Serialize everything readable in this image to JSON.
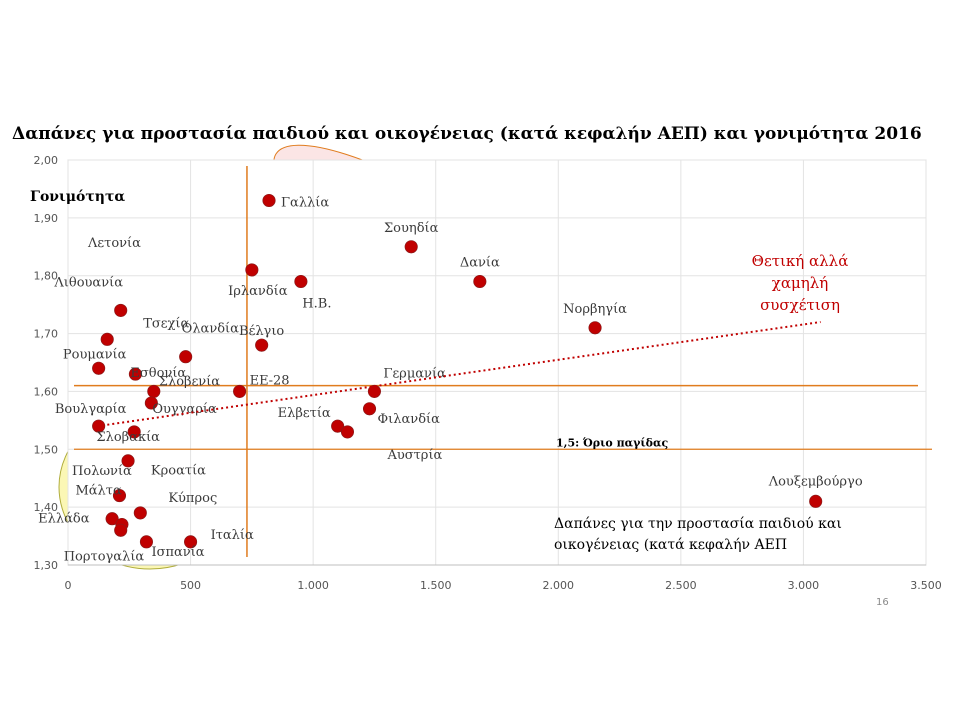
{
  "title": "Δαπάνες για προστασία παιδιού και οικογένειας (κατά κεφαλήν ΑΕΠ) και γονιμότητα 2016",
  "page_number": "16",
  "colors": {
    "point": "#c00000",
    "lines": "#e07c1e",
    "ellipse_pink": "#fbe5e5",
    "ellipse_yellow": "#fbf7b5",
    "trend": "#c00000",
    "annotation": "#c00000"
  },
  "chart_data": {
    "type": "scatter",
    "xlim": [
      0,
      3500
    ],
    "ylim": [
      1.3,
      2.0
    ],
    "x_ticks": [
      0,
      500,
      1000,
      1500,
      2000,
      2500,
      3000,
      3500
    ],
    "x_tick_labels": [
      "0",
      "500",
      "1.000",
      "1.500",
      "2.000",
      "2.500",
      "3.000",
      "3.500"
    ],
    "y_ticks": [
      1.3,
      1.4,
      1.5,
      1.6,
      1.7,
      1.8,
      1.9,
      2.0
    ],
    "y_tick_labels": [
      "1,30",
      "1,40",
      "1,50",
      "1,60",
      "1,70",
      "1,80",
      "1,90",
      "2,00"
    ],
    "ylabel": "Γονιμότητα",
    "xlabel_lines": [
      "Δαπάνες για την προστασία παιδιού και",
      "οικογένειας (κατά κεφαλήν  ΑΕΠ"
    ],
    "grid": true,
    "points": [
      {
        "label": "Γαλλία",
        "x": 820,
        "y": 1.93
      },
      {
        "label": "Σουηδία",
        "x": 1400,
        "y": 1.85
      },
      {
        "label": "Δανία",
        "x": 1680,
        "y": 1.79
      },
      {
        "label": "Νορβηγία",
        "x": 2150,
        "y": 1.71
      },
      {
        "label": "Ιρλανδία",
        "x": 750,
        "y": 1.81
      },
      {
        "label": "Η.Β.",
        "x": 950,
        "y": 1.79
      },
      {
        "label": "Βέλγιο",
        "x": 790,
        "y": 1.68
      },
      {
        "label": "Λιθουανία",
        "x": 215,
        "y": 1.74
      },
      {
        "label": "Τσεχία",
        "x": 160,
        "y": 1.69
      },
      {
        "label": "Ολανδία",
        "x": 480,
        "y": 1.66
      },
      {
        "label": "Ρουμανία",
        "x": 125,
        "y": 1.64
      },
      {
        "label": "Εσθονία",
        "x": 275,
        "y": 1.63
      },
      {
        "label": "Σλοβενία",
        "x": 350,
        "y": 1.6
      },
      {
        "label": "ΕΕ-28",
        "x": 700,
        "y": 1.6
      },
      {
        "label": "Ουγγαρία",
        "x": 340,
        "y": 1.58
      },
      {
        "label": "Βουλγαρία",
        "x": 125,
        "y": 1.54
      },
      {
        "label": "Σλοβακία",
        "x": 270,
        "y": 1.53
      },
      {
        "label": "Γερμανία",
        "x": 1250,
        "y": 1.6
      },
      {
        "label": "Ελβετία",
        "x": 1100,
        "y": 1.54
      },
      {
        "label": "Φιλανδία",
        "x": 1230,
        "y": 1.57
      },
      {
        "label": "Αυστρία",
        "x": 1140,
        "y": 1.53
      },
      {
        "label": "Πολωνία",
        "x": 245,
        "y": 1.48
      },
      {
        "label": "Μάλτα",
        "x": 210,
        "y": 1.42
      },
      {
        "label": "Ελλάδα",
        "x": 180,
        "y": 1.38
      },
      {
        "label": "Κροατία",
        "x": 220,
        "y": 1.37
      },
      {
        "label": "Κύπρος",
        "x": 295,
        "y": 1.39
      },
      {
        "label": "Πορτογαλία",
        "x": 215,
        "y": 1.36
      },
      {
        "label": "Ισπανία",
        "x": 320,
        "y": 1.34
      },
      {
        "label": "Ιταλία",
        "x": 500,
        "y": 1.34
      },
      {
        "label": "Λουξεμβούργο",
        "x": 3050,
        "y": 1.41
      },
      {
        "label": "Λετονία",
        "x": null,
        "y": null
      }
    ],
    "reference_lines": {
      "vertical_x": 730,
      "horizontal_y": 1.61,
      "replacement_y": 1.5,
      "replacement_label": "1,5: Όριο παγίδας"
    },
    "trend_line": {
      "from": [
        120,
        1.54
      ],
      "to": [
        3070,
        1.72
      ]
    },
    "trend_annotation": [
      "Θετική αλλά",
      "χαμηλή",
      "συσχέτιση"
    ]
  }
}
